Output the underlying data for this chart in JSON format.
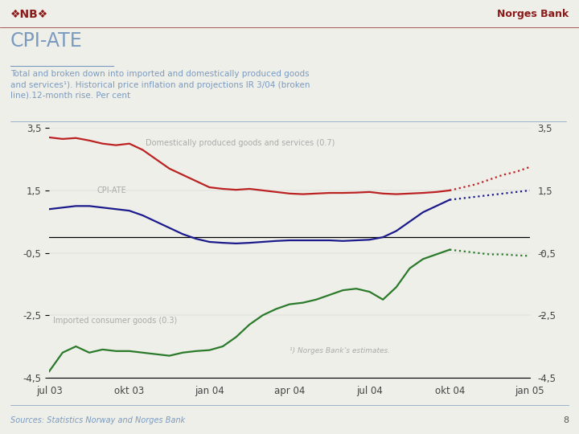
{
  "title_main": "CPI-ATE",
  "header_right": "Norges Bank",
  "source_text": "Sources: Statistics Norway and Norges Bank",
  "page_number": "8",
  "ylim": [
    -4.5,
    3.5
  ],
  "yticks": [
    -4.5,
    -2.5,
    -0.5,
    1.5,
    3.5
  ],
  "background_color": "#efefea",
  "x_labels": [
    "jul 03",
    "okt 03",
    "jan 04",
    "apr 04",
    "jul 04",
    "okt 04",
    "jan 05"
  ],
  "x_positions": [
    0,
    3,
    6,
    9,
    12,
    15,
    18
  ],
  "red_solid_x": [
    0,
    0.5,
    1,
    1.5,
    2,
    2.5,
    3,
    3.5,
    4,
    4.5,
    5,
    5.5,
    6,
    6.5,
    7,
    7.5,
    8,
    8.5,
    9,
    9.5,
    10,
    10.5,
    11,
    11.5,
    12,
    12.5,
    13,
    13.5,
    14,
    14.5,
    15
  ],
  "red_solid_y": [
    3.2,
    3.15,
    3.18,
    3.1,
    3.0,
    2.95,
    3.0,
    2.8,
    2.5,
    2.2,
    2.0,
    1.8,
    1.6,
    1.55,
    1.52,
    1.55,
    1.5,
    1.45,
    1.4,
    1.38,
    1.4,
    1.42,
    1.42,
    1.43,
    1.45,
    1.4,
    1.38,
    1.4,
    1.42,
    1.45,
    1.5
  ],
  "red_dotted_x": [
    15,
    15.5,
    16,
    16.5,
    17,
    17.5,
    18
  ],
  "red_dotted_y": [
    1.5,
    1.6,
    1.7,
    1.85,
    2.0,
    2.1,
    2.25
  ],
  "blue_solid_x": [
    0,
    0.5,
    1,
    1.5,
    2,
    2.5,
    3,
    3.5,
    4,
    4.5,
    5,
    5.5,
    6,
    6.5,
    7,
    7.5,
    8,
    8.5,
    9,
    9.5,
    10,
    10.5,
    11,
    11.5,
    12,
    12.5,
    13,
    13.5,
    14,
    14.5,
    15
  ],
  "blue_solid_y": [
    0.9,
    0.95,
    1.0,
    1.0,
    0.95,
    0.9,
    0.85,
    0.7,
    0.5,
    0.3,
    0.1,
    -0.05,
    -0.15,
    -0.18,
    -0.2,
    -0.18,
    -0.15,
    -0.12,
    -0.1,
    -0.1,
    -0.1,
    -0.1,
    -0.12,
    -0.1,
    -0.08,
    0.0,
    0.2,
    0.5,
    0.8,
    1.0,
    1.2
  ],
  "blue_dotted_x": [
    15,
    15.5,
    16,
    16.5,
    17,
    17.5,
    18
  ],
  "blue_dotted_y": [
    1.2,
    1.25,
    1.3,
    1.35,
    1.4,
    1.45,
    1.5
  ],
  "green_solid_x": [
    0,
    0.5,
    1,
    1.5,
    2,
    2.5,
    3,
    3.5,
    4,
    4.5,
    5,
    5.5,
    6,
    6.5,
    7,
    7.5,
    8,
    8.5,
    9,
    9.5,
    10,
    10.5,
    11,
    11.5,
    12,
    12.5,
    13,
    13.5,
    14,
    14.5,
    15
  ],
  "green_solid_y": [
    -4.3,
    -3.7,
    -3.5,
    -3.7,
    -3.6,
    -3.65,
    -3.65,
    -3.7,
    -3.75,
    -3.8,
    -3.7,
    -3.65,
    -3.62,
    -3.5,
    -3.2,
    -2.8,
    -2.5,
    -2.3,
    -2.15,
    -2.1,
    -2.0,
    -1.85,
    -1.7,
    -1.65,
    -1.75,
    -2.0,
    -1.6,
    -1.0,
    -0.7,
    -0.55,
    -0.4
  ],
  "green_dotted_x": [
    15,
    15.5,
    16,
    16.5,
    17,
    17.5,
    18
  ],
  "green_dotted_y": [
    -0.4,
    -0.45,
    -0.5,
    -0.55,
    -0.55,
    -0.58,
    -0.6
  ],
  "red_color": "#bb2222",
  "blue_color": "#1a1a8c",
  "green_color": "#2a7a2a",
  "zero_line_color": "#000000",
  "title_color": "#7a9abf",
  "label_color": "#aaaaaa",
  "tick_color": "#444444",
  "header_color": "#8b1a1a",
  "footer_color": "#7a9abf",
  "dash_color": "#555555",
  "label_domestic": "Domestically produced goods and services (0.7)",
  "label_cpiate": "CPI-ATE",
  "label_imported": "Imported consumer goods (0.3)",
  "label_footnote": "¹) Norges Bank’s estimates.",
  "sub_text": "Total and broken down into imported and domestically produced goods\nand services¹). Historical price inflation and projections IR 3/04 (broken\nline).12-month rise. Per cent"
}
